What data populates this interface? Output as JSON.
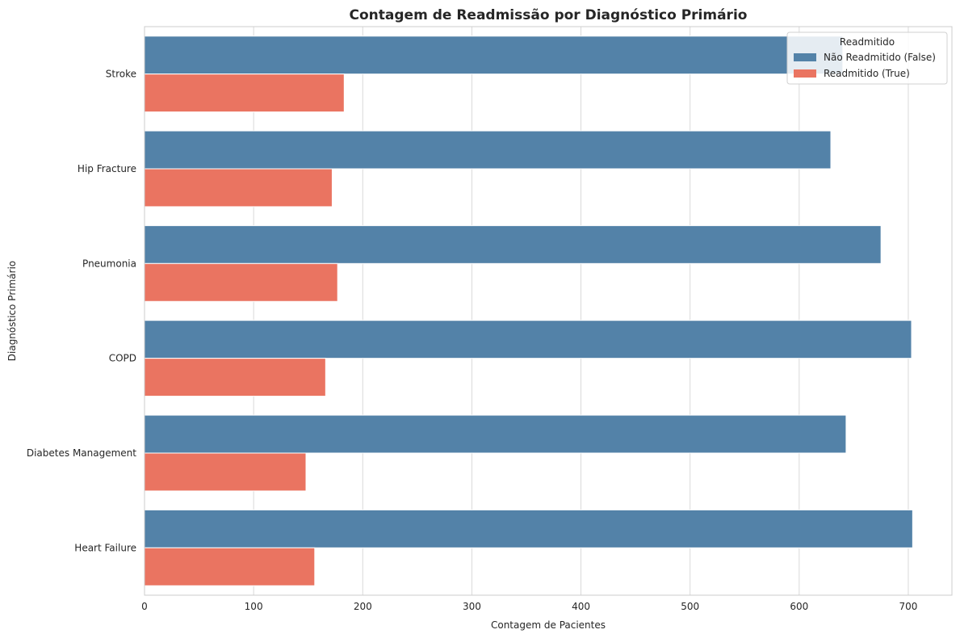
{
  "chart_data": {
    "type": "bar",
    "orientation": "horizontal",
    "title": "Contagem de Readmissão por Diagnóstico Primário",
    "xlabel": "Contagem de Pacientes",
    "ylabel": "Diagnóstico Primário",
    "xlim": [
      0,
      740
    ],
    "xticks": [
      0,
      100,
      200,
      300,
      400,
      500,
      600,
      700
    ],
    "grid": true,
    "legend_title": "Readmitido",
    "legend_position": "top-right",
    "categories": [
      "Stroke",
      "Hip Fracture",
      "Pneumonia",
      "COPD",
      "Diabetes Management",
      "Heart Failure"
    ],
    "series": [
      {
        "name": "Não Readmitido (False)",
        "color": "#5382a8",
        "values": [
          640,
          629,
          675,
          703,
          643,
          704
        ]
      },
      {
        "name": "Readmitido (True)",
        "color": "#ea7461",
        "values": [
          183,
          172,
          177,
          166,
          148,
          156
        ]
      }
    ]
  }
}
